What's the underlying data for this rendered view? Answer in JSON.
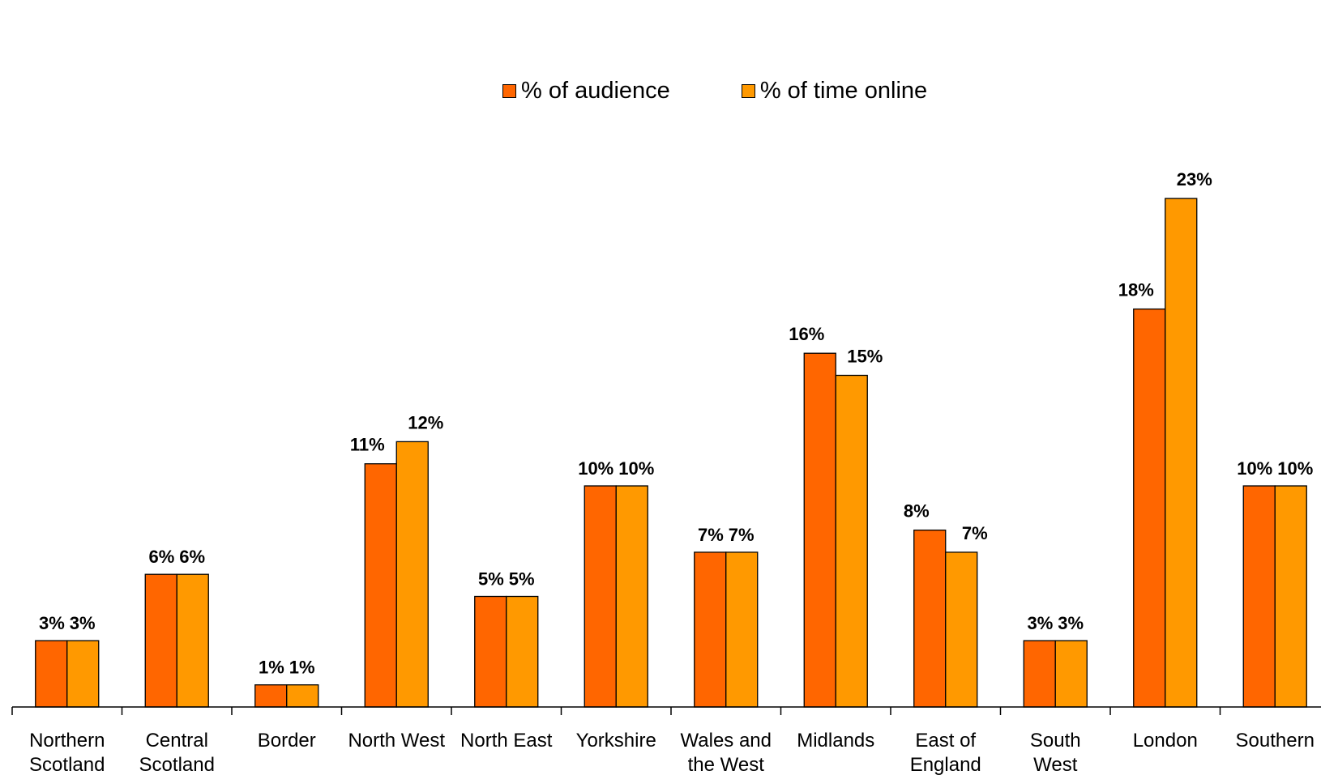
{
  "chart_data": {
    "type": "bar",
    "categories": [
      [
        "Northern",
        "Scotland"
      ],
      [
        "Central",
        "Scotland"
      ],
      [
        "Border"
      ],
      [
        "North West"
      ],
      [
        "North East"
      ],
      [
        "Yorkshire"
      ],
      [
        "Wales and",
        "the West"
      ],
      [
        "Midlands"
      ],
      [
        "East of",
        "England"
      ],
      [
        "South",
        "West"
      ],
      [
        "London"
      ],
      [
        "Southern"
      ]
    ],
    "series": [
      {
        "name": "% of audience",
        "color": "#ff6600",
        "values": [
          3,
          6,
          1,
          11,
          5,
          10,
          7,
          16,
          8,
          3,
          18,
          10
        ],
        "labels": [
          "3%",
          "6%",
          "1%",
          "11%",
          "5%",
          "10%",
          "7%",
          "16%",
          "8%",
          "3%",
          "18%",
          "10%"
        ]
      },
      {
        "name": "% of time online",
        "color": "#ff9900",
        "values": [
          3,
          6,
          1,
          12,
          5,
          10,
          7,
          15,
          7,
          3,
          23,
          10
        ],
        "labels": [
          "3%",
          "6%",
          "1%",
          "12%",
          "5%",
          "10%",
          "7%",
          "15%",
          "7%",
          "3%",
          "23%",
          "10%"
        ]
      }
    ],
    "title": "",
    "xlabel": "",
    "ylabel": "",
    "ylim": [
      0,
      24
    ],
    "grid": false,
    "legend_position": "top-center"
  }
}
